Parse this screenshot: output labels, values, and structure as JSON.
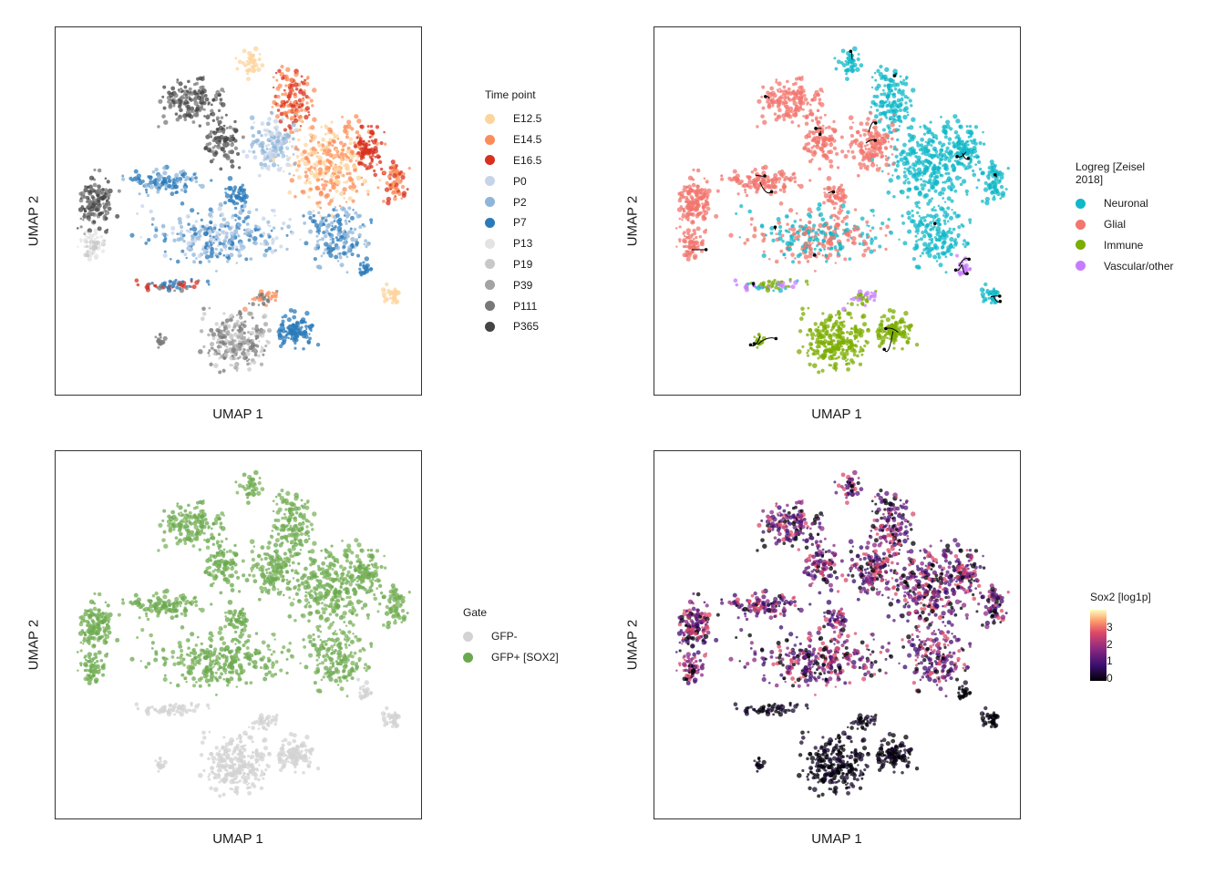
{
  "panels": [
    {
      "id": "timepoint",
      "xlabel": "UMAP 1",
      "ylabel": "UMAP 2",
      "legend": {
        "title": "Time point",
        "items": [
          {
            "label": "E12.5",
            "color": "#fdd49e"
          },
          {
            "label": "E14.5",
            "color": "#fc8d59"
          },
          {
            "label": "E16.5",
            "color": "#d7301f"
          },
          {
            "label": "P0",
            "color": "#c6d4ea"
          },
          {
            "label": "P2",
            "color": "#8fb5da"
          },
          {
            "label": "P7",
            "color": "#2b7bba"
          },
          {
            "label": "P13",
            "color": "#e3e3e3"
          },
          {
            "label": "P19",
            "color": "#c8c8c8"
          },
          {
            "label": "P39",
            "color": "#a3a3a3"
          },
          {
            "label": "P111",
            "color": "#787878"
          },
          {
            "label": "P365",
            "color": "#444444"
          }
        ]
      }
    },
    {
      "id": "logreg",
      "xlabel": "UMAP 1",
      "ylabel": "UMAP 2",
      "legend": {
        "title": "Logreg [Zeisel 2018]",
        "items": [
          {
            "label": "Neuronal",
            "color": "#10b8c8"
          },
          {
            "label": "Glial",
            "color": "#f2766d"
          },
          {
            "label": "Immune",
            "color": "#7cae00"
          },
          {
            "label": "Vascular/other",
            "color": "#c77cff"
          }
        ]
      }
    },
    {
      "id": "gate",
      "xlabel": "UMAP 1",
      "ylabel": "UMAP 2",
      "legend": {
        "title": "Gate",
        "items": [
          {
            "label": "GFP-",
            "color": "#d3d3d3"
          },
          {
            "label": "GFP+ [SOX2]",
            "color": "#6aa84f"
          }
        ]
      }
    },
    {
      "id": "sox2",
      "xlabel": "UMAP 1",
      "ylabel": "UMAP 2",
      "colorbar": {
        "title": "Sox2 [log1p]",
        "ticks": [
          "0",
          "1",
          "2",
          "3"
        ],
        "colors": [
          "#000004",
          "#3b0f70",
          "#8c2981",
          "#de4968",
          "#fe9f6d",
          "#fcfdbf"
        ]
      }
    }
  ],
  "chart_data": [
    {
      "type": "scatter",
      "title": "",
      "xlabel": "UMAP 1",
      "ylabel": "UMAP 2",
      "color_by": "Time point",
      "categories": [
        "E12.5",
        "E14.5",
        "E16.5",
        "P0",
        "P2",
        "P7",
        "P13",
        "P19",
        "P39",
        "P111",
        "P365"
      ],
      "legend": "right",
      "grid": false
    },
    {
      "type": "scatter",
      "title": "",
      "xlabel": "UMAP 1",
      "ylabel": "UMAP 2",
      "color_by": "Logreg [Zeisel 2018]",
      "categories": [
        "Neuronal",
        "Glial",
        "Immune",
        "Vascular/other"
      ],
      "overlay": "streamlines",
      "legend": "right",
      "grid": false
    },
    {
      "type": "scatter",
      "title": "",
      "xlabel": "UMAP 1",
      "ylabel": "UMAP 2",
      "color_by": "Gate",
      "categories": [
        "GFP-",
        "GFP+ [SOX2]"
      ],
      "legend": "right",
      "grid": false
    },
    {
      "type": "scatter",
      "title": "",
      "xlabel": "UMAP 1",
      "ylabel": "UMAP 2",
      "color_by": "Sox2 [log1p]",
      "colorbar_range": [
        0,
        3.6
      ],
      "colorbar_ticks": [
        0,
        1,
        2,
        3
      ],
      "legend": "right",
      "grid": false
    }
  ]
}
